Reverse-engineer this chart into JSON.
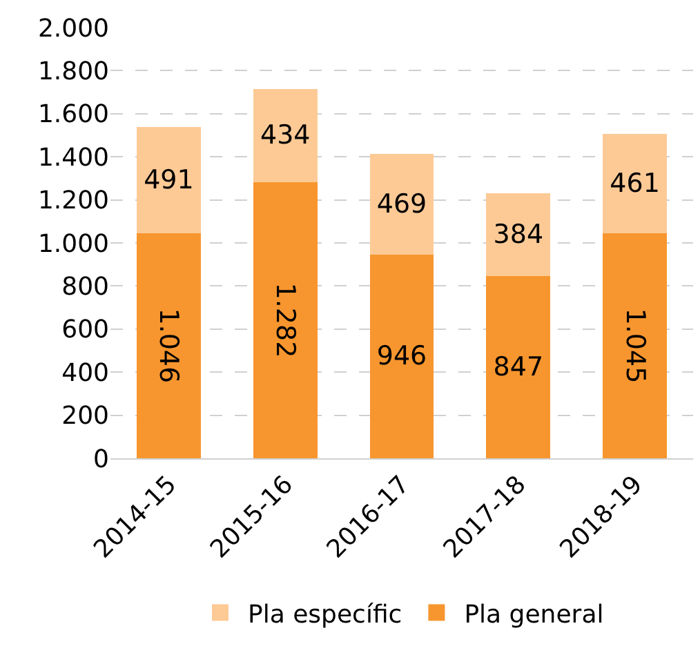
{
  "chart_data": {
    "type": "bar",
    "stacked": true,
    "categories": [
      "2014-15",
      "2015-16",
      "2016-17",
      "2017-18",
      "2018-19"
    ],
    "series": [
      {
        "name": "Pla general",
        "color": "#f7962e",
        "values": [
          1046,
          1282,
          946,
          847,
          1045
        ],
        "value_labels": [
          "1.046",
          "1.282",
          "946",
          "847",
          "1.045"
        ]
      },
      {
        "name": "Pla específic",
        "color": "#fdca96",
        "values": [
          491,
          434,
          469,
          384,
          461
        ],
        "value_labels": [
          "491",
          "434",
          "469",
          "384",
          "461"
        ]
      }
    ],
    "ylim": [
      0,
      2000
    ],
    "yticks": [
      0,
      200,
      400,
      600,
      800,
      {
        "value": 1000,
        "label": "1.000"
      },
      {
        "value": 1200,
        "label": "1.200"
      },
      {
        "value": 1400,
        "label": "1.400"
      },
      {
        "value": 1600,
        "label": "1.600"
      },
      {
        "value": 1800,
        "label": "1.800"
      },
      {
        "value": 2000,
        "label": "2.000"
      }
    ],
    "grid": "y",
    "legend": "bottom"
  }
}
